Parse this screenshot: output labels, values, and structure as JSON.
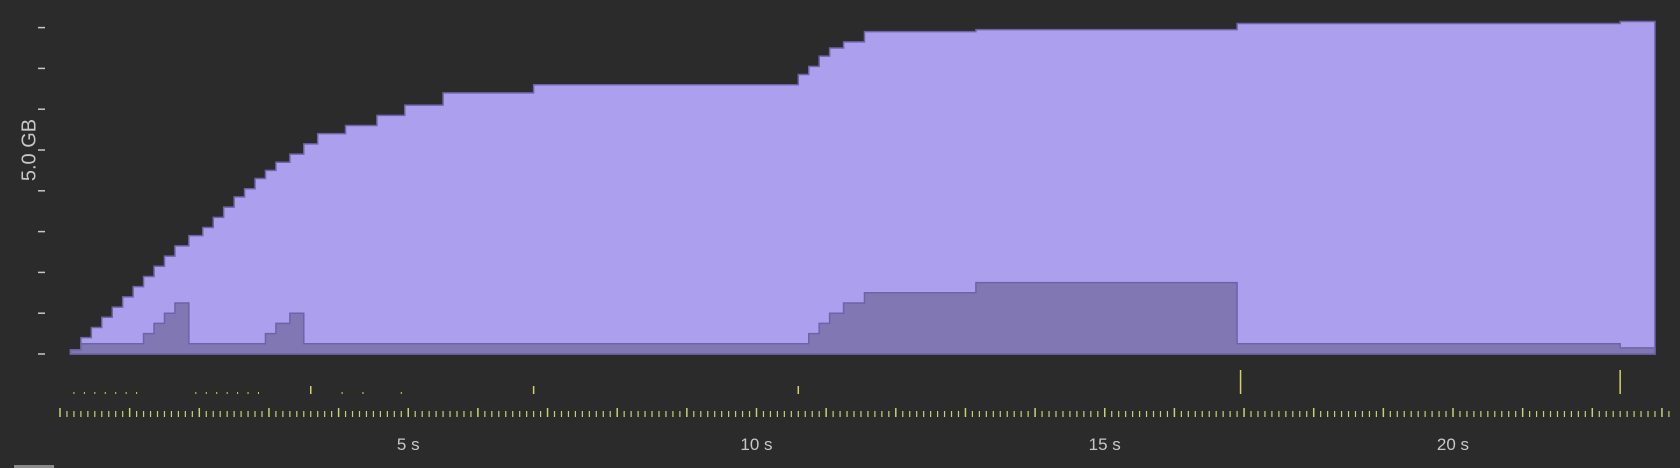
{
  "chart_data": {
    "type": "area",
    "ylabel": "5.0 GB",
    "x_unit": "s",
    "xlim": [
      0,
      23.1
    ],
    "ylim": [
      0,
      8.2
    ],
    "x_ticks": [
      {
        "value": 5,
        "label": "5 s"
      },
      {
        "value": 10,
        "label": "10 s"
      },
      {
        "value": 15,
        "label": "15 s"
      },
      {
        "value": 20,
        "label": "20 s"
      }
    ],
    "y_ticks": [
      0,
      1,
      2,
      3,
      4,
      5,
      6,
      7,
      8
    ],
    "y_labeled_tick": 5,
    "colors": {
      "background": "#2b2b2b",
      "total": "#ac9fee",
      "sub": "#8077b3",
      "line": "#6c64a8",
      "tick": "#c8c8c8",
      "ruler": "#c7d36a",
      "marker": "#d8cf6a"
    },
    "series": [
      {
        "role": "total",
        "x": [
          0.15,
          0.3,
          0.45,
          0.6,
          0.75,
          0.9,
          1.05,
          1.2,
          1.35,
          1.5,
          1.65,
          1.85,
          2.05,
          2.2,
          2.35,
          2.5,
          2.65,
          2.8,
          2.95,
          3.1,
          3.3,
          3.5,
          3.7,
          4.1,
          4.55,
          4.95,
          5.5,
          6.8,
          10.6,
          10.75,
          10.9,
          11.05,
          11.25,
          11.55,
          13.15,
          16.9,
          22.4,
          22.9
        ],
        "y": [
          0.1,
          0.4,
          0.65,
          0.9,
          1.15,
          1.4,
          1.65,
          1.9,
          2.15,
          2.4,
          2.65,
          2.9,
          3.1,
          3.35,
          3.6,
          3.85,
          4.05,
          4.3,
          4.5,
          4.7,
          4.9,
          5.15,
          5.4,
          5.6,
          5.85,
          6.1,
          6.4,
          6.6,
          6.85,
          7.05,
          7.3,
          7.5,
          7.65,
          7.9,
          7.95,
          8.1,
          8.15,
          8.15
        ]
      },
      {
        "role": "sub",
        "x": [
          0.15,
          0.3,
          1.05,
          1.2,
          1.35,
          1.5,
          1.65,
          1.85,
          2.05,
          2.8,
          2.95,
          3.1,
          3.3,
          3.5,
          3.7,
          4.1,
          4.55,
          4.95,
          5.5,
          6.8,
          10.6,
          10.75,
          10.9,
          11.05,
          11.25,
          11.55,
          13.15,
          16.9,
          22.4,
          22.9
        ],
        "y": [
          0.1,
          0.25,
          0.25,
          0.5,
          0.75,
          1.0,
          1.25,
          0.25,
          0.25,
          0.25,
          0.5,
          0.75,
          1.0,
          0.25,
          0.25,
          0.25,
          0.25,
          0.25,
          0.25,
          0.25,
          0.25,
          0.5,
          0.75,
          1.0,
          1.25,
          1.5,
          1.75,
          0.25,
          0.15,
          0.15
        ]
      }
    ],
    "event_markers": [
      {
        "x": 0.2,
        "size": "tiny"
      },
      {
        "x": 0.35,
        "size": "tiny"
      },
      {
        "x": 0.5,
        "size": "tiny"
      },
      {
        "x": 0.65,
        "size": "tiny"
      },
      {
        "x": 0.8,
        "size": "tiny"
      },
      {
        "x": 0.95,
        "size": "tiny"
      },
      {
        "x": 1.1,
        "size": "tiny"
      },
      {
        "x": 1.95,
        "size": "tiny"
      },
      {
        "x": 2.1,
        "size": "tiny"
      },
      {
        "x": 2.25,
        "size": "tiny"
      },
      {
        "x": 2.4,
        "size": "tiny"
      },
      {
        "x": 2.55,
        "size": "tiny"
      },
      {
        "x": 2.7,
        "size": "tiny"
      },
      {
        "x": 2.85,
        "size": "tiny"
      },
      {
        "x": 3.6,
        "size": "small"
      },
      {
        "x": 4.05,
        "size": "tiny"
      },
      {
        "x": 4.35,
        "size": "tiny"
      },
      {
        "x": 4.9,
        "size": "tiny"
      },
      {
        "x": 6.8,
        "size": "small"
      },
      {
        "x": 10.6,
        "size": "small"
      },
      {
        "x": 16.95,
        "size": "large"
      },
      {
        "x": 22.4,
        "size": "large"
      }
    ]
  }
}
